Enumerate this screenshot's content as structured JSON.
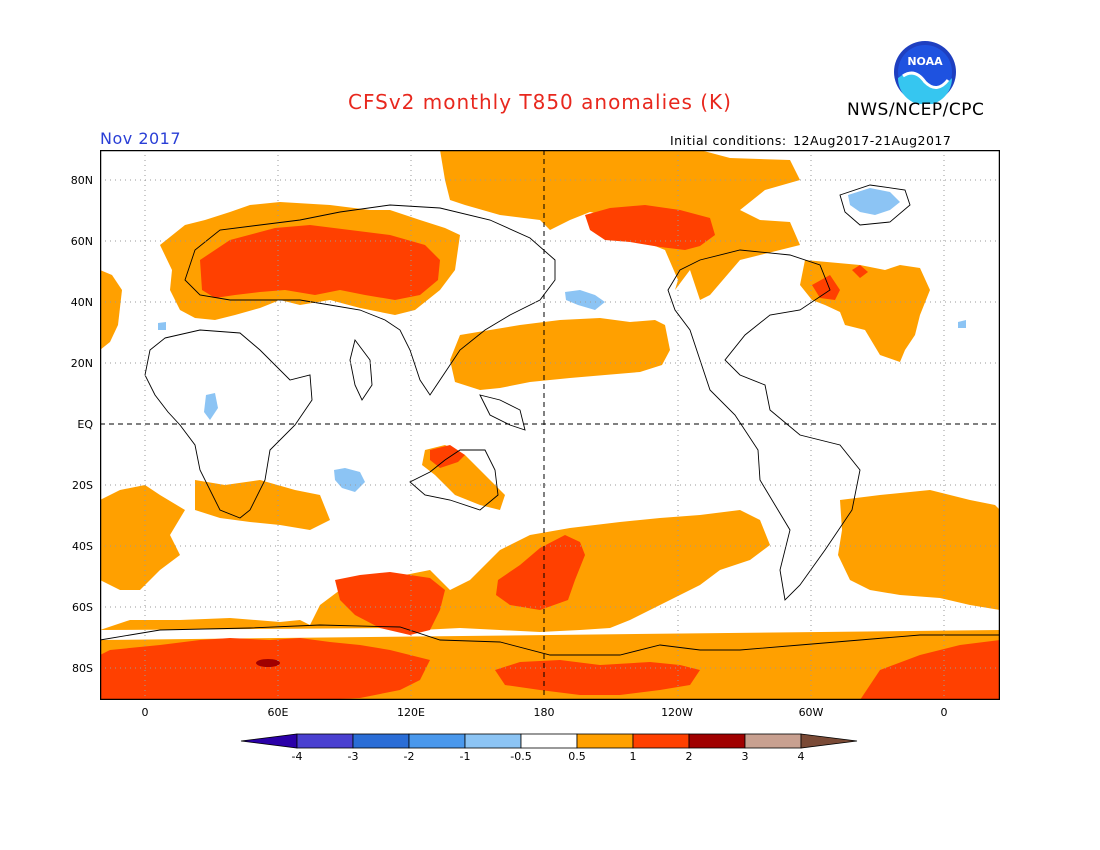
{
  "header": {
    "title": "CFSv2 monthly T850 anomalies (K)",
    "agency": "NWS/NCEP/CPC",
    "logo_text": "NOAA",
    "month": "Nov 2017",
    "initial_conditions_label": "Initial conditions:",
    "initial_conditions_range": "12Aug2017-21Aug2017"
  },
  "map": {
    "y_ticks": [
      "80N",
      "60N",
      "40N",
      "20N",
      "EQ",
      "20S",
      "40S",
      "60S",
      "80S"
    ],
    "x_ticks": [
      "0",
      "60E",
      "120E",
      "180",
      "120W",
      "60W",
      "0"
    ]
  },
  "colorbar": {
    "labels": [
      "-4",
      "-3",
      "-2",
      "-1",
      "-0.5",
      "0.5",
      "1",
      "2",
      "3",
      "4"
    ],
    "colors": [
      "#2b00a8",
      "#4a40d0",
      "#2a6dd6",
      "#4a98ec",
      "#8cc4f4",
      "#ffffff",
      "#ffa000",
      "#ff4000",
      "#a00000",
      "#c8a090",
      "#7a4a36"
    ]
  },
  "colors": {
    "title": "#e8281e",
    "month": "#2a3fd6",
    "anomaly_05_1": "#ffa000",
    "anomaly_1_2": "#ff4000",
    "anomaly_2_3": "#a00000",
    "anomaly_neg_05_1": "#8cc4f4"
  }
}
